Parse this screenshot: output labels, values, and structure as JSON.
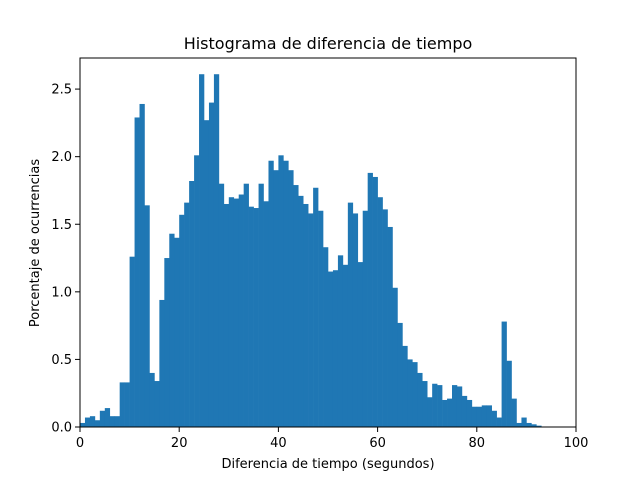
{
  "chart_data": {
    "type": "bar",
    "title": "Histograma de diferencia de tiempo",
    "xlabel": "Diferencia de tiempo (segundos)",
    "ylabel": "Porcentaje de ocurrencias",
    "xlim": [
      0,
      100
    ],
    "ylim": [
      0,
      2.73
    ],
    "bin_width": 1,
    "x_bin_starts": [
      0,
      1,
      2,
      3,
      4,
      5,
      6,
      7,
      8,
      9,
      10,
      11,
      12,
      13,
      14,
      15,
      16,
      17,
      18,
      19,
      20,
      21,
      22,
      23,
      24,
      25,
      26,
      27,
      28,
      29,
      30,
      31,
      32,
      33,
      34,
      35,
      36,
      37,
      38,
      39,
      40,
      41,
      42,
      43,
      44,
      45,
      46,
      47,
      48,
      49,
      50,
      51,
      52,
      53,
      54,
      55,
      56,
      57,
      58,
      59,
      60,
      61,
      62,
      63,
      64,
      65,
      66,
      67,
      68,
      69,
      70,
      71,
      72,
      73,
      74,
      75,
      76,
      77,
      78,
      79,
      80,
      81,
      82,
      83,
      84,
      85,
      86,
      87,
      88,
      89,
      90,
      91,
      92,
      93,
      94,
      95,
      96,
      97,
      98,
      99
    ],
    "values": [
      0.03,
      0.07,
      0.08,
      0.05,
      0.12,
      0.14,
      0.08,
      0.08,
      0.33,
      0.33,
      1.26,
      2.29,
      2.39,
      1.64,
      0.4,
      0.34,
      0.94,
      1.25,
      1.43,
      1.4,
      1.57,
      1.66,
      1.82,
      2.01,
      2.61,
      2.27,
      2.4,
      2.61,
      1.8,
      1.65,
      1.7,
      1.69,
      1.72,
      1.8,
      1.63,
      1.62,
      1.8,
      1.67,
      1.97,
      1.9,
      2.01,
      1.97,
      1.9,
      1.79,
      1.71,
      1.65,
      1.58,
      1.77,
      1.6,
      1.33,
      1.15,
      1.16,
      1.27,
      1.2,
      1.66,
      1.58,
      1.22,
      1.6,
      1.88,
      1.85,
      1.7,
      1.61,
      1.48,
      1.03,
      0.77,
      0.6,
      0.5,
      0.48,
      0.4,
      0.34,
      0.22,
      0.32,
      0.31,
      0.2,
      0.21,
      0.31,
      0.3,
      0.23,
      0.2,
      0.15,
      0.15,
      0.16,
      0.16,
      0.12,
      0.07,
      0.78,
      0.49,
      0.21,
      0.03,
      0.07,
      0.03,
      0.02,
      0.01,
      0.0,
      0.0,
      0.0,
      0.0,
      0.0,
      0.0,
      0.0
    ],
    "x_ticks": [
      "0",
      "20",
      "40",
      "60",
      "80",
      "100"
    ],
    "y_ticks": [
      "0.0",
      "0.5",
      "1.0",
      "1.5",
      "2.0",
      "2.5"
    ],
    "x_tick_values": [
      0,
      20,
      40,
      60,
      80,
      100
    ],
    "y_tick_values": [
      0.0,
      0.5,
      1.0,
      1.5,
      2.0,
      2.5
    ],
    "grid": false,
    "legend": "none",
    "bar_color": "#1f77b4"
  }
}
